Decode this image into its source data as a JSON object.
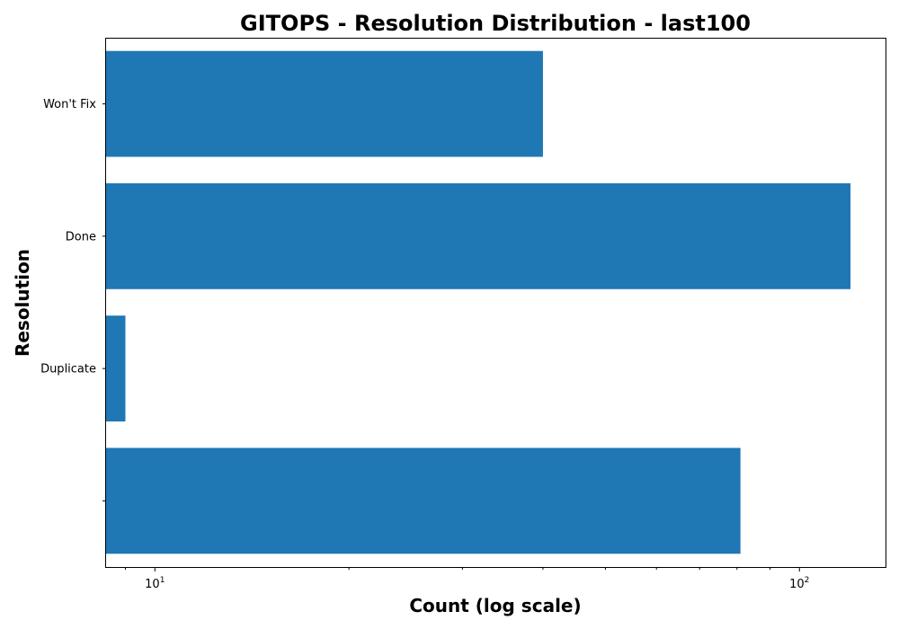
{
  "chart_data": {
    "type": "bar",
    "orientation": "horizontal",
    "title": "GITOPS - Resolution Distribution - last100",
    "xlabel": "Count (log scale)",
    "ylabel": "Resolution",
    "x_scale": "log",
    "xlim": [
      8.4,
      136
    ],
    "x_major_ticks": [
      {
        "base": "10",
        "exponent": "1",
        "value": 10
      },
      {
        "base": "10",
        "exponent": "2",
        "value": 100
      }
    ],
    "x_minor_ticks": [
      9,
      20,
      30,
      40,
      50,
      60,
      70,
      80,
      90
    ],
    "categories": [
      "",
      "Duplicate",
      "Done",
      "Won't Fix"
    ],
    "values": [
      81,
      9,
      120,
      40
    ],
    "grid": false,
    "color": "#1f77b4"
  }
}
